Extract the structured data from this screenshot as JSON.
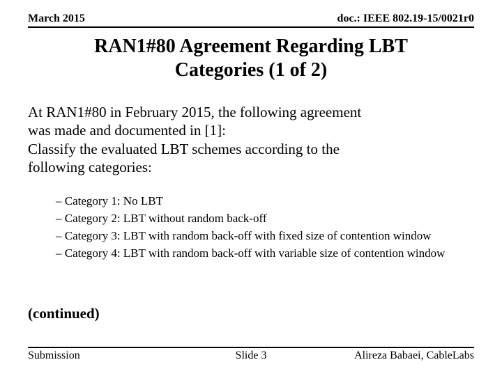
{
  "header": {
    "date": "March 2015",
    "doc": "doc.: IEEE 802.19-15/0021r0"
  },
  "title_line1": "RAN1#80 Agreement Regarding LBT",
  "title_line2": "Categories (1 of 2)",
  "intro_line1": "At RAN1#80 in February 2015, the following agreement",
  "intro_line2": "was made and documented in [1]:",
  "intro_line3": "Classify the evaluated LBT schemes according to the",
  "intro_line4": "following categories:",
  "categories": {
    "c1": "– Category 1: No LBT",
    "c2": "– Category 2: LBT without random back-off",
    "c3": "– Category 3: LBT with random back-off with fixed size of contention window",
    "c4": "– Category 4: LBT with random back-off with variable size of contention window"
  },
  "continued": "(continued)",
  "footer": {
    "left": "Submission",
    "center": "Slide 3",
    "right": "Alireza Babaei, CableLabs"
  },
  "style": {
    "background_color": "#ffffff",
    "text_color": "#000000",
    "rule_color": "#000000",
    "title_fontsize": 28,
    "body_fontsize": 21,
    "category_fontsize": 17,
    "header_fontsize": 16,
    "footer_fontsize": 16,
    "font_family": "Times New Roman"
  }
}
